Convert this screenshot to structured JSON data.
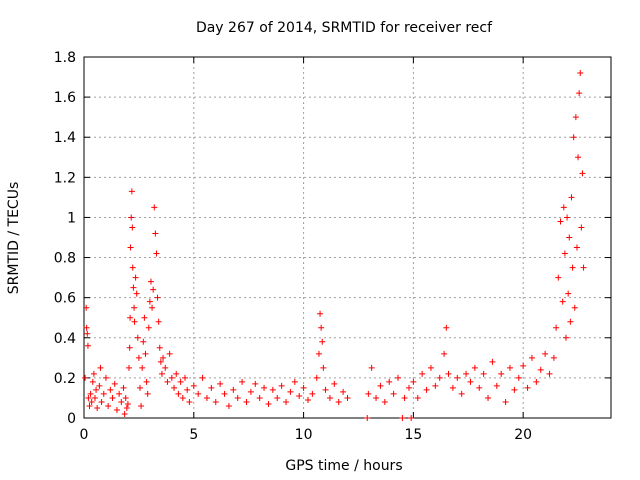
{
  "chart_data": {
    "type": "scatter",
    "title": "Day 267 of 2014, SRMTID for receiver recf",
    "xlabel": "GPS time / hours",
    "ylabel": "SRMTID / TECUs",
    "xlim": [
      0,
      24
    ],
    "ylim": [
      0,
      1.8
    ],
    "xticks": [
      0,
      5,
      10,
      15,
      20
    ],
    "xtick_labels": [
      "0",
      "5",
      "10",
      "15",
      "20"
    ],
    "yticks": [
      0,
      0.2,
      0.4,
      0.6,
      0.8,
      1,
      1.2,
      1.4,
      1.6,
      1.8
    ],
    "ytick_labels": [
      "0",
      "0.2",
      "0.4",
      "0.6",
      "0.8",
      "1",
      "1.2",
      "1.4",
      "1.6",
      "1.8"
    ],
    "grid": true,
    "marker": "+",
    "color": "#ff0000",
    "series": [
      {
        "name": "SRMTID",
        "points": [
          [
            0.05,
            0.2
          ],
          [
            0.1,
            0.55
          ],
          [
            0.12,
            0.45
          ],
          [
            0.15,
            0.42
          ],
          [
            0.18,
            0.36
          ],
          [
            0.2,
            0.1
          ],
          [
            0.25,
            0.06
          ],
          [
            0.3,
            0.12
          ],
          [
            0.35,
            0.08
          ],
          [
            0.4,
            0.18
          ],
          [
            0.45,
            0.22
          ],
          [
            0.5,
            0.1
          ],
          [
            0.55,
            0.14
          ],
          [
            0.6,
            0.05
          ],
          [
            0.7,
            0.16
          ],
          [
            0.75,
            0.25
          ],
          [
            0.8,
            0.08
          ],
          [
            0.9,
            0.12
          ],
          [
            1.0,
            0.2
          ],
          [
            1.1,
            0.06
          ],
          [
            1.2,
            0.14
          ],
          [
            1.3,
            0.1
          ],
          [
            1.4,
            0.17
          ],
          [
            1.5,
            0.04
          ],
          [
            1.6,
            0.12
          ],
          [
            1.7,
            0.08
          ],
          [
            1.8,
            0.15
          ],
          [
            1.85,
            0.02
          ],
          [
            1.9,
            0.1
          ],
          [
            1.95,
            0.05
          ],
          [
            2.0,
            0.07
          ],
          [
            2.05,
            0.25
          ],
          [
            2.08,
            0.35
          ],
          [
            2.1,
            0.5
          ],
          [
            2.12,
            0.85
          ],
          [
            2.15,
            1.0
          ],
          [
            2.18,
            1.13
          ],
          [
            2.2,
            0.95
          ],
          [
            2.22,
            0.75
          ],
          [
            2.25,
            0.65
          ],
          [
            2.28,
            0.55
          ],
          [
            2.3,
            0.48
          ],
          [
            2.35,
            0.7
          ],
          [
            2.4,
            0.62
          ],
          [
            2.45,
            0.4
          ],
          [
            2.5,
            0.3
          ],
          [
            2.55,
            0.15
          ],
          [
            2.6,
            0.06
          ],
          [
            2.65,
            0.25
          ],
          [
            2.7,
            0.38
          ],
          [
            2.75,
            0.5
          ],
          [
            2.8,
            0.32
          ],
          [
            2.85,
            0.18
          ],
          [
            2.9,
            0.12
          ],
          [
            2.95,
            0.45
          ],
          [
            3.0,
            0.58
          ],
          [
            3.05,
            0.68
          ],
          [
            3.1,
            0.55
          ],
          [
            3.15,
            0.64
          ],
          [
            3.2,
            1.05
          ],
          [
            3.25,
            0.92
          ],
          [
            3.3,
            0.82
          ],
          [
            3.35,
            0.6
          ],
          [
            3.4,
            0.48
          ],
          [
            3.45,
            0.35
          ],
          [
            3.5,
            0.28
          ],
          [
            3.55,
            0.22
          ],
          [
            3.6,
            0.3
          ],
          [
            3.7,
            0.25
          ],
          [
            3.8,
            0.18
          ],
          [
            3.9,
            0.32
          ],
          [
            4.0,
            0.2
          ],
          [
            4.1,
            0.15
          ],
          [
            4.2,
            0.22
          ],
          [
            4.3,
            0.12
          ],
          [
            4.4,
            0.18
          ],
          [
            4.5,
            0.1
          ],
          [
            4.6,
            0.2
          ],
          [
            4.7,
            0.14
          ],
          [
            4.8,
            0.08
          ],
          [
            5.0,
            0.16
          ],
          [
            5.2,
            0.12
          ],
          [
            5.4,
            0.2
          ],
          [
            5.6,
            0.1
          ],
          [
            5.8,
            0.15
          ],
          [
            6.0,
            0.08
          ],
          [
            6.2,
            0.17
          ],
          [
            6.4,
            0.12
          ],
          [
            6.6,
            0.06
          ],
          [
            6.8,
            0.14
          ],
          [
            7.0,
            0.1
          ],
          [
            7.2,
            0.18
          ],
          [
            7.4,
            0.08
          ],
          [
            7.6,
            0.13
          ],
          [
            7.8,
            0.17
          ],
          [
            8.0,
            0.1
          ],
          [
            8.2,
            0.15
          ],
          [
            8.4,
            0.07
          ],
          [
            8.6,
            0.14
          ],
          [
            8.8,
            0.1
          ],
          [
            9.0,
            0.16
          ],
          [
            9.2,
            0.08
          ],
          [
            9.4,
            0.13
          ],
          [
            9.6,
            0.18
          ],
          [
            9.8,
            0.11
          ],
          [
            10.0,
            0.15
          ],
          [
            10.2,
            0.09
          ],
          [
            10.4,
            0.12
          ],
          [
            10.6,
            0.2
          ],
          [
            10.7,
            0.32
          ],
          [
            10.75,
            0.52
          ],
          [
            10.8,
            0.45
          ],
          [
            10.85,
            0.38
          ],
          [
            10.9,
            0.25
          ],
          [
            11.0,
            0.14
          ],
          [
            11.2,
            0.1
          ],
          [
            11.4,
            0.17
          ],
          [
            11.6,
            0.08
          ],
          [
            11.8,
            0.13
          ],
          [
            12.0,
            0.1
          ],
          [
            12.9,
            0.0
          ],
          [
            12.95,
            0.12
          ],
          [
            13.1,
            0.25
          ],
          [
            13.3,
            0.1
          ],
          [
            13.5,
            0.16
          ],
          [
            13.7,
            0.08
          ],
          [
            13.9,
            0.18
          ],
          [
            14.1,
            0.12
          ],
          [
            14.3,
            0.2
          ],
          [
            14.5,
            0.0
          ],
          [
            14.6,
            0.1
          ],
          [
            14.8,
            0.15
          ],
          [
            14.9,
            0.0
          ],
          [
            15.0,
            0.18
          ],
          [
            15.2,
            0.1
          ],
          [
            15.4,
            0.22
          ],
          [
            15.6,
            0.14
          ],
          [
            15.8,
            0.25
          ],
          [
            16.0,
            0.16
          ],
          [
            16.2,
            0.2
          ],
          [
            16.4,
            0.32
          ],
          [
            16.5,
            0.45
          ],
          [
            16.6,
            0.22
          ],
          [
            16.8,
            0.15
          ],
          [
            17.0,
            0.2
          ],
          [
            17.2,
            0.12
          ],
          [
            17.4,
            0.22
          ],
          [
            17.6,
            0.18
          ],
          [
            17.8,
            0.25
          ],
          [
            18.0,
            0.15
          ],
          [
            18.2,
            0.22
          ],
          [
            18.4,
            0.1
          ],
          [
            18.6,
            0.28
          ],
          [
            18.8,
            0.16
          ],
          [
            19.0,
            0.22
          ],
          [
            19.2,
            0.08
          ],
          [
            19.4,
            0.25
          ],
          [
            19.6,
            0.14
          ],
          [
            19.8,
            0.2
          ],
          [
            20.0,
            0.26
          ],
          [
            20.2,
            0.15
          ],
          [
            20.4,
            0.3
          ],
          [
            20.6,
            0.18
          ],
          [
            20.8,
            0.24
          ],
          [
            21.0,
            0.32
          ],
          [
            21.2,
            0.22
          ],
          [
            21.4,
            0.3
          ],
          [
            21.5,
            0.45
          ],
          [
            21.6,
            0.7
          ],
          [
            21.7,
            0.98
          ],
          [
            21.8,
            0.58
          ],
          [
            21.85,
            1.05
          ],
          [
            21.9,
            0.82
          ],
          [
            21.95,
            0.4
          ],
          [
            22.0,
            1.0
          ],
          [
            22.05,
            0.62
          ],
          [
            22.1,
            0.9
          ],
          [
            22.15,
            0.48
          ],
          [
            22.2,
            1.1
          ],
          [
            22.25,
            0.75
          ],
          [
            22.3,
            1.4
          ],
          [
            22.35,
            0.55
          ],
          [
            22.4,
            1.5
          ],
          [
            22.45,
            0.85
          ],
          [
            22.5,
            1.3
          ],
          [
            22.55,
            1.62
          ],
          [
            22.6,
            1.72
          ],
          [
            22.65,
            0.95
          ],
          [
            22.7,
            1.22
          ],
          [
            22.75,
            0.75
          ]
        ]
      }
    ]
  }
}
